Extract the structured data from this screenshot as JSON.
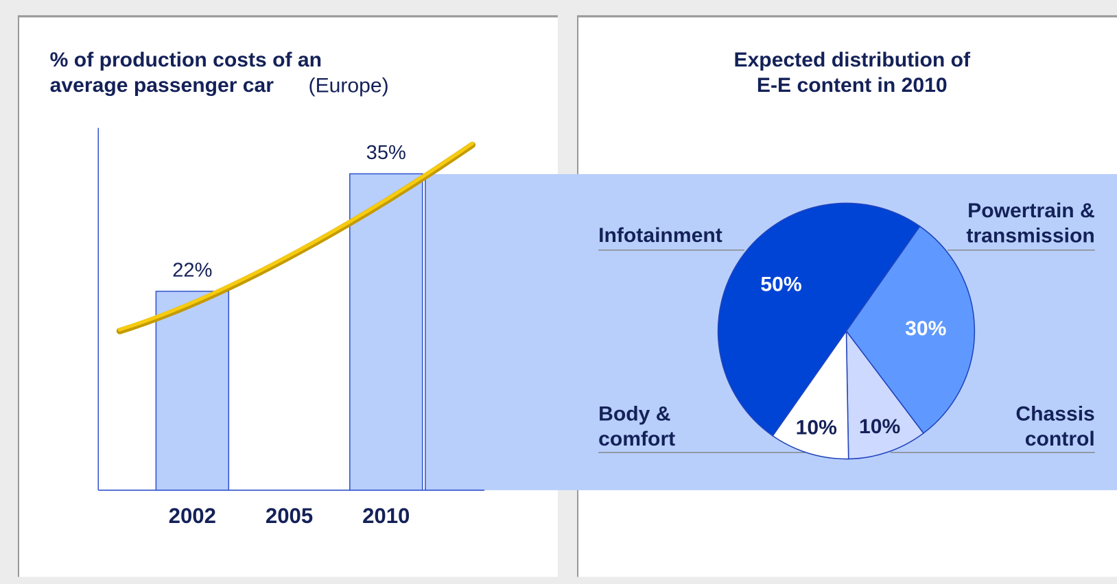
{
  "chart_data": [
    {
      "type": "bar",
      "title": "% of production costs of an\naverage passenger car",
      "title_note": "(Europe)",
      "categories": [
        "2002",
        "2005",
        "2010"
      ],
      "values": [
        22,
        null,
        35
      ],
      "value_labels": [
        "22%",
        null,
        "35%"
      ],
      "color": "#b8cffc",
      "ylim": [
        0,
        40
      ]
    },
    {
      "type": "pie",
      "title": "Expected distribution of\nE-E content in 2010",
      "categories": [
        "Infotainment",
        "Powertrain &\ntransmission",
        "Chassis\ncontrol",
        "Body &\ncomfort"
      ],
      "values": [
        50,
        30,
        10,
        10
      ],
      "value_labels": [
        "50%",
        "30%",
        "10%",
        "10%"
      ],
      "colors": [
        "#0044d6",
        "#5f99ff",
        "#cdd9ff",
        "#ffffff"
      ]
    }
  ]
}
